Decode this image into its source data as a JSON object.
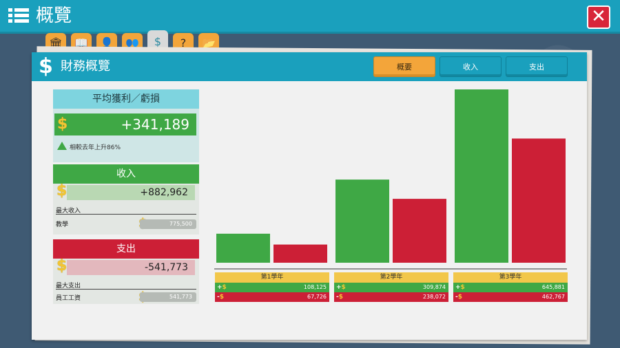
{
  "topbar": {
    "title": "概覽"
  },
  "tabs": [
    {
      "name": "bank-icon",
      "glyph": "🏛"
    },
    {
      "name": "book-icon",
      "glyph": "📖"
    },
    {
      "name": "person-icon",
      "glyph": "👤"
    },
    {
      "name": "people-icon",
      "glyph": "👥"
    },
    {
      "name": "dollar-tab-icon",
      "glyph": "$"
    },
    {
      "name": "question-icon",
      "glyph": "?"
    },
    {
      "name": "folder-icon",
      "glyph": "📂"
    }
  ],
  "panel": {
    "title": "財務概覽",
    "buttons": {
      "overview": "概要",
      "income": "收入",
      "expense": "支出"
    }
  },
  "summary": {
    "avg_title": "平均獲利／虧損",
    "avg_value": "+341,189",
    "trend_text": "相較去年上升86%",
    "income_title": "收入",
    "income_value": "+882,962",
    "max_income_label": "最大收入",
    "max_income_item": "教學",
    "max_income_value": "775,500",
    "expense_title": "支出",
    "expense_value": "-541,773",
    "max_expense_label": "最大支出",
    "max_expense_item": "員工工資",
    "max_expense_value": "541,773"
  },
  "colors": {
    "income": "#3fa845",
    "expense": "#cc1f36",
    "accent": "#1aa0bd",
    "year": "#f2c74a"
  },
  "chart_data": {
    "type": "bar",
    "categories": [
      "第1學年",
      "第2學年",
      "第3學年"
    ],
    "series": [
      {
        "values": [
          108125,
          309874,
          645881
        ]
      },
      {
        "values": [
          67726,
          238072,
          462767
        ]
      }
    ],
    "labels": {
      "income": [
        "108,125",
        "309,874",
        "645,881"
      ],
      "expense": [
        "67,726",
        "238,072",
        "462,767"
      ]
    },
    "ylim": [
      0,
      645881
    ],
    "grid": false,
    "legend": "none"
  }
}
